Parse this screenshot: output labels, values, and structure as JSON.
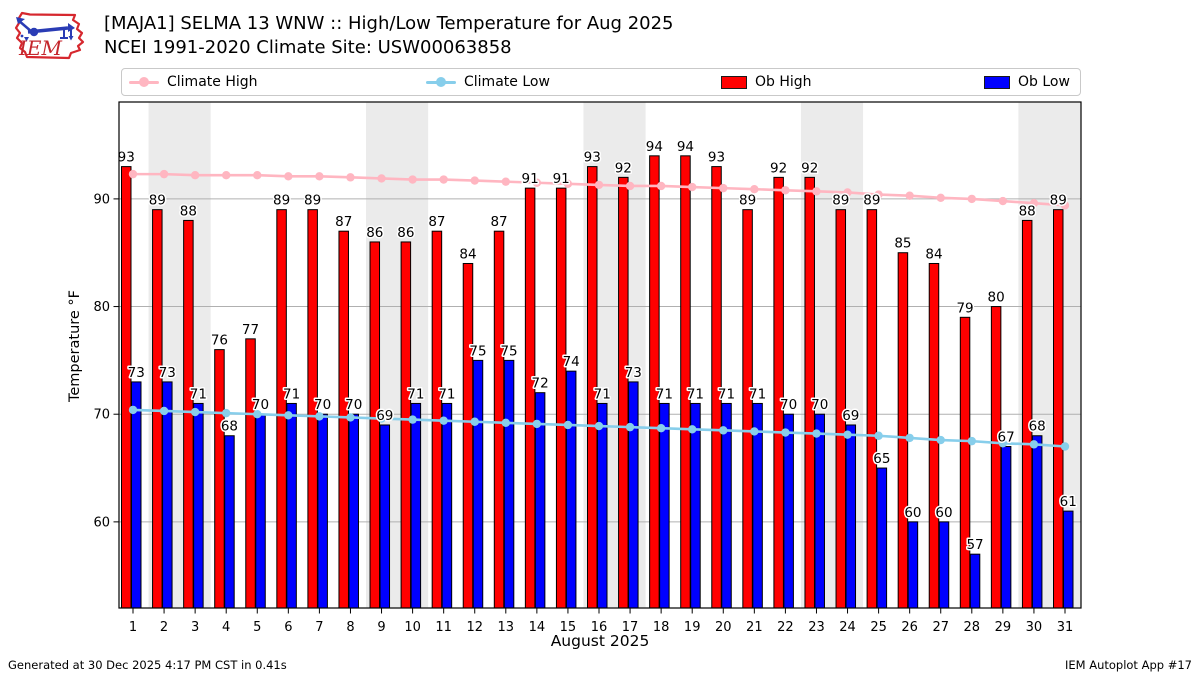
{
  "header": {
    "title_line1": "[MAJA1] SELMA 13 WNW :: High/Low Temperature for Aug 2025",
    "title_line2": "NCEI 1991-2020 Climate Site: USW00063858"
  },
  "logo": {
    "text": "IEM"
  },
  "legend": {
    "items": [
      {
        "label": "Climate High",
        "type": "line",
        "color": "#ffb6c1"
      },
      {
        "label": "Climate Low",
        "type": "line",
        "color": "#87ceeb"
      },
      {
        "label": "Ob High",
        "type": "rect",
        "color": "#ff0000"
      },
      {
        "label": "Ob Low",
        "type": "rect",
        "color": "#0000ff"
      }
    ]
  },
  "axes": {
    "ylabel": "Temperature °F",
    "xlabel": "August 2025"
  },
  "footer": {
    "left": "Generated at 30 Dec 2025 4:17 PM CST in 0.41s",
    "right": "IEM Autoplot App #17"
  },
  "chart_data": {
    "type": "bar",
    "title": "[MAJA1] SELMA 13 WNW :: High/Low Temperature for Aug 2025",
    "subtitle": "NCEI 1991-2020 Climate Site: USW00063858",
    "xlabel": "August 2025",
    "ylabel": "Temperature °F",
    "ylim": [
      52,
      99
    ],
    "yticks": [
      60,
      70,
      80,
      90
    ],
    "grid": "horizontal",
    "band_color": "#ebebeb",
    "grid_color": "#b0b0b0",
    "days": [
      1,
      2,
      3,
      4,
      5,
      6,
      7,
      8,
      9,
      10,
      11,
      12,
      13,
      14,
      15,
      16,
      17,
      18,
      19,
      20,
      21,
      22,
      23,
      24,
      25,
      26,
      27,
      28,
      29,
      30,
      31
    ],
    "weekend_bands": [
      [
        2,
        3
      ],
      [
        9,
        10
      ],
      [
        16,
        17
      ],
      [
        23,
        24
      ],
      [
        30,
        31
      ]
    ],
    "series": [
      {
        "name": "Climate High",
        "type": "line",
        "color": "#ffb6c1",
        "values": [
          92.3,
          92.3,
          92.2,
          92.2,
          92.2,
          92.1,
          92.1,
          92.0,
          91.9,
          91.8,
          91.8,
          91.7,
          91.6,
          91.5,
          91.4,
          91.3,
          91.2,
          91.2,
          91.1,
          91.0,
          90.9,
          90.8,
          90.7,
          90.6,
          90.4,
          90.3,
          90.1,
          90.0,
          89.8,
          89.6,
          89.4
        ]
      },
      {
        "name": "Climate Low",
        "type": "line",
        "color": "#87ceeb",
        "values": [
          70.4,
          70.3,
          70.2,
          70.1,
          70.0,
          69.9,
          69.8,
          69.7,
          69.6,
          69.5,
          69.4,
          69.3,
          69.2,
          69.1,
          69.0,
          68.9,
          68.8,
          68.7,
          68.6,
          68.5,
          68.4,
          68.3,
          68.2,
          68.1,
          68.0,
          67.8,
          67.6,
          67.5,
          67.3,
          67.2,
          67.0
        ]
      },
      {
        "name": "Ob High",
        "type": "bar",
        "color": "#ff0000",
        "labeled": true,
        "values": [
          93,
          89,
          88,
          76,
          77,
          89,
          89,
          87,
          86,
          86,
          87,
          84,
          87,
          91,
          91,
          93,
          92,
          94,
          94,
          93,
          89,
          92,
          92,
          89,
          89,
          85,
          84,
          79,
          80,
          88,
          89
        ]
      },
      {
        "name": "Ob Low",
        "type": "bar",
        "color": "#0000ff",
        "labeled": true,
        "values": [
          73,
          73,
          71,
          68,
          70,
          71,
          70,
          70,
          69,
          71,
          71,
          75,
          75,
          72,
          74,
          71,
          73,
          71,
          71,
          71,
          71,
          70,
          70,
          69,
          65,
          60,
          60,
          57,
          67,
          68,
          61
        ]
      }
    ]
  }
}
